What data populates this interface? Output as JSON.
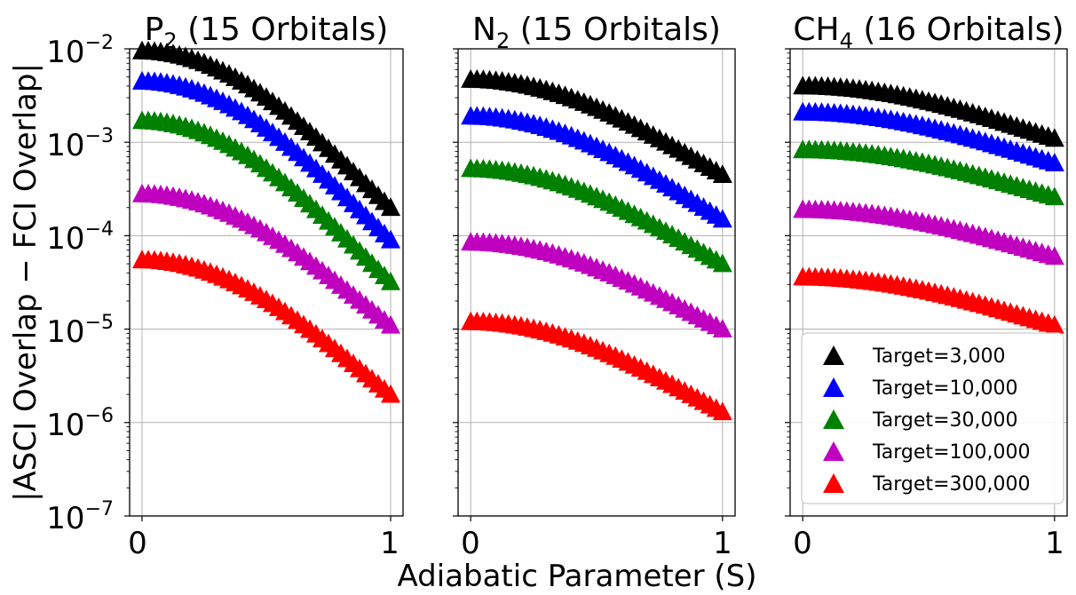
{
  "chart_data": {
    "type": "scatter",
    "xlabel": "Adiabatic Parameter (S)",
    "ylabel": "|ASCI Overlap − FCI Overlap|",
    "yscale": "log",
    "ylim": [
      1e-07,
      0.01
    ],
    "xlim": [
      -0.05,
      1.05
    ],
    "x_ticks": [
      "0",
      "1"
    ],
    "y_ticks": [
      {
        "base": "10",
        "exp": "−7"
      },
      {
        "base": "10",
        "exp": "−6"
      },
      {
        "base": "10",
        "exp": "−5"
      },
      {
        "base": "10",
        "exp": "−4"
      },
      {
        "base": "10",
        "exp": "−3"
      },
      {
        "base": "10",
        "exp": "−2"
      }
    ],
    "grid": true,
    "legend_position": "lower-right of third panel",
    "series_meta": [
      {
        "name": "Target=3,000",
        "color": "#000000"
      },
      {
        "name": "Target=10,000",
        "color": "#0000ff"
      },
      {
        "name": "Target=30,000",
        "color": "#008000"
      },
      {
        "name": "Target=100,000",
        "color": "#bf00bf"
      },
      {
        "name": "Target=300,000",
        "color": "#ff0000"
      }
    ],
    "n_points": 41,
    "panels": [
      {
        "title": {
          "main": "P",
          "sub": "2",
          "rest": " (15 Orbitals)"
        },
        "series": [
          {
            "name": "Target=3,000",
            "start": 0.0095,
            "end": 0.0002
          },
          {
            "name": "Target=10,000",
            "start": 0.0045,
            "end": 9e-05
          },
          {
            "name": "Target=30,000",
            "start": 0.0017,
            "end": 3.2e-05
          },
          {
            "name": "Target=100,000",
            "start": 0.00028,
            "end": 1.1e-05
          },
          {
            "name": "Target=300,000",
            "start": 5.5e-05,
            "end": 2e-06
          }
        ]
      },
      {
        "title": {
          "main": "N",
          "sub": "2",
          "rest": " (15 Orbitals)"
        },
        "series": [
          {
            "name": "Target=3,000",
            "start": 0.0047,
            "end": 0.00045
          },
          {
            "name": "Target=10,000",
            "start": 0.0019,
            "end": 0.00015
          },
          {
            "name": "Target=30,000",
            "start": 0.00052,
            "end": 5e-05
          },
          {
            "name": "Target=100,000",
            "start": 8.5e-05,
            "end": 1e-05
          },
          {
            "name": "Target=300,000",
            "start": 1.2e-05,
            "end": 1.3e-06
          }
        ]
      },
      {
        "title": {
          "main": "CH",
          "sub": "4",
          "rest": " (16 Orbitals)"
        },
        "series": [
          {
            "name": "Target=3,000",
            "start": 0.004,
            "end": 0.0011
          },
          {
            "name": "Target=10,000",
            "start": 0.0021,
            "end": 0.0006
          },
          {
            "name": "Target=30,000",
            "start": 0.00083,
            "end": 0.00026
          },
          {
            "name": "Target=100,000",
            "start": 0.00019,
            "end": 6e-05
          },
          {
            "name": "Target=300,000",
            "start": 3.6e-05,
            "end": 1.1e-05
          }
        ]
      }
    ]
  }
}
